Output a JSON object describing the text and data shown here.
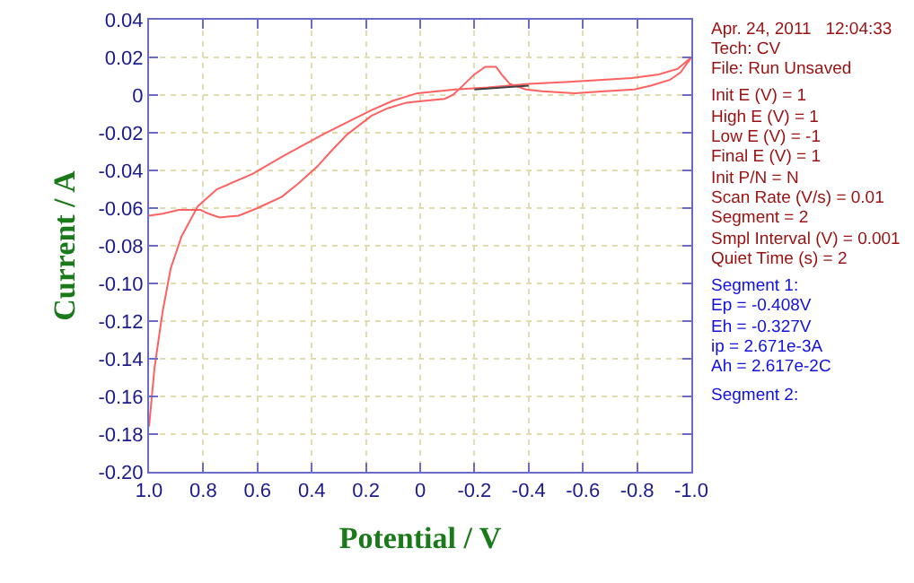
{
  "chart_data": {
    "type": "line",
    "xlabel": "Potential / V",
    "ylabel": "Current / A",
    "series": [
      {
        "color": "#ff6060",
        "x": [
          1.0,
          0.98,
          0.95,
          0.92,
          0.88,
          0.82,
          0.75,
          0.62,
          0.5,
          0.36,
          0.25,
          0.18,
          0.1,
          0.01,
          -0.13,
          -0.25,
          -0.4,
          -0.55,
          -0.66,
          -0.78,
          -0.88,
          -0.95,
          -1.0,
          -0.96,
          -0.92,
          -0.85,
          -0.79,
          -0.68,
          -0.57,
          -0.45,
          -0.39,
          -0.33,
          -0.3,
          -0.28,
          -0.24,
          -0.2,
          -0.15,
          -0.12,
          -0.09,
          -0.02,
          0.05,
          0.12,
          0.18,
          0.27,
          0.33,
          0.38,
          0.45,
          0.51,
          0.6,
          0.67,
          0.74,
          0.78,
          0.81,
          0.85,
          0.89,
          0.95,
          1.0
        ],
        "values": [
          -0.176,
          -0.145,
          -0.115,
          -0.092,
          -0.075,
          -0.059,
          -0.05,
          -0.042,
          -0.032,
          -0.021,
          -0.013,
          -0.008,
          -0.003,
          0.001,
          0.003,
          0.004,
          0.006,
          0.007,
          0.008,
          0.009,
          0.011,
          0.014,
          0.02,
          0.012,
          0.008,
          0.005,
          0.003,
          0.002,
          0.001,
          0.002,
          0.003,
          0.006,
          0.011,
          0.015,
          0.015,
          0.011,
          0.004,
          0.0,
          -0.002,
          -0.003,
          -0.004,
          -0.007,
          -0.011,
          -0.021,
          -0.03,
          -0.038,
          -0.047,
          -0.054,
          -0.06,
          -0.064,
          -0.065,
          -0.063,
          -0.061,
          -0.061,
          -0.061,
          -0.063,
          -0.064
        ]
      },
      {
        "color": "#404040",
        "x": [
          -0.2,
          -0.4
        ],
        "values": [
          0.003,
          0.005
        ]
      }
    ],
    "xlim": [
      1.0,
      -1.0
    ],
    "xticks": [
      {
        "value": 1,
        "label": "1.0"
      },
      0.8,
      0.6,
      0.4,
      0.2,
      0,
      -0.2,
      -0.4,
      -0.6,
      -0.8,
      {
        "value": -1,
        "label": "-1.0"
      }
    ],
    "ylim": [
      -0.2,
      0.04
    ],
    "yticks": [
      {
        "value": -0.2,
        "label": "-0.20"
      },
      -0.18,
      -0.16,
      -0.14,
      -0.12,
      {
        "value": -0.1,
        "label": "-0.10"
      },
      -0.08,
      -0.06,
      -0.04,
      -0.02,
      0,
      0.02,
      0.04
    ],
    "grid": true,
    "marker": "none",
    "line_style": "solid",
    "annotations": [
      "Apr. 24, 2011   12:04:33",
      "Tech: CV",
      "File: Run Unsaved",
      "Init E (V) = 1",
      "High E (V) = 1",
      "Low E (V) = -1",
      "Final E (V) = 1",
      "Init P/N = N",
      "Scan Rate (V/s) = 0.01",
      "Segment = 2",
      "Smpl Interval (V) = 0.001",
      "Quiet Time (s) = 2",
      "Segment 1:",
      "Ep = -0.408V",
      "Eh = -0.327V",
      "ip = 2.671e-3A",
      "Ah = 2.617e-2C",
      "Segment 2:"
    ]
  }
}
